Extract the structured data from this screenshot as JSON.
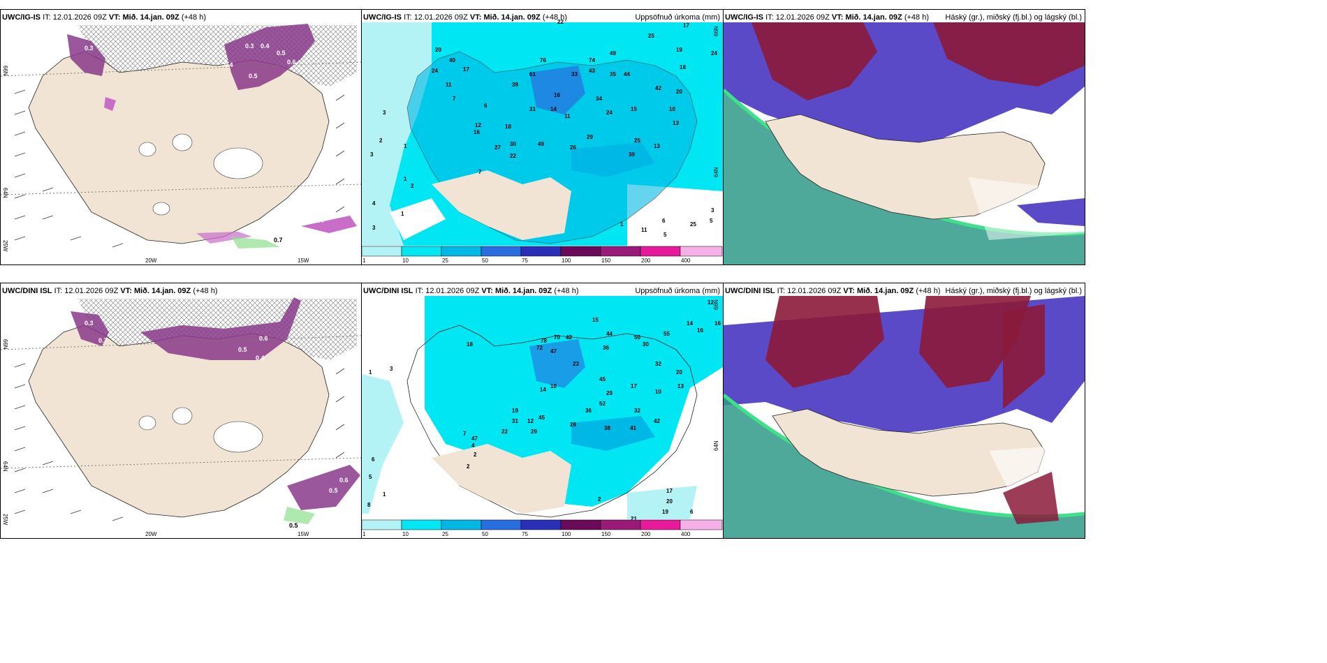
{
  "palette": {
    "land": "#f2e4d4",
    "sea": "#ffffff",
    "coast": "#222222",
    "snow": "#8a3a8a",
    "snow_light": "#c86ec8",
    "rain_green": "#8fe08f",
    "precip": [
      "#b3f3f5",
      "#00e6f2",
      "#00b8e6",
      "#2a6de0",
      "#2a2fb8",
      "#6a0a5a",
      "#9a1a7a",
      "#e61a9a",
      "#f5b0e8"
    ],
    "cloud_high": "#8b1a3a",
    "cloud_mid": "#5a4ac8",
    "cloud_low": "#2f9a8a",
    "cloud_green_edge": "#3ee08a"
  },
  "rows": [
    {
      "model": "UWC/IG-IS",
      "it_label": "IT:",
      "it_value": "12.01.2026 09Z",
      "vt_label": "VT:",
      "vt_value": "Mið. 14.jan. 09Z",
      "lead": "(+48 h)",
      "panels": [
        {
          "title": "",
          "values": [
            "0.7",
            "0.3",
            "0.4",
            "0.5",
            "0.6",
            "0.5",
            "0.4",
            "0.3",
            "0.4"
          ]
        },
        {
          "title": "Uppsöfnuð úrkoma (mm)",
          "values": [
            "17",
            "19",
            "24",
            "18",
            "22",
            "25",
            "74",
            "49",
            "33",
            "76",
            "43",
            "61",
            "44",
            "35",
            "39",
            "34",
            "24",
            "15",
            "42",
            "20",
            "10",
            "13",
            "31",
            "16",
            "14",
            "11",
            "18",
            "49",
            "29",
            "27",
            "30",
            "22",
            "26",
            "39",
            "25",
            "13",
            "7",
            "11",
            "7",
            "3",
            "2",
            "1",
            "4",
            "3",
            "2",
            "1",
            "3",
            "1",
            "11",
            "6",
            "5",
            "25",
            "3",
            "5",
            "1",
            "40",
            "20",
            "17",
            "12",
            "16",
            "6",
            "24"
          ]
        },
        {
          "title": "Háský (gr.), miðský (fj.bl.) og lágský (bl.)"
        }
      ],
      "axis": {
        "left": [
          "66N",
          "64N",
          "25W"
        ],
        "bottom": [
          "20W",
          "15W"
        ],
        "right_center": [
          "66N",
          "64N"
        ]
      }
    },
    {
      "model": "UWC/DINI ISL",
      "it_label": "IT:",
      "it_value": "12.01.2026 09Z",
      "vt_label": "VT:",
      "vt_value": "Mið. 14.jan. 09Z",
      "lead": "(+48 h)",
      "panels": [
        {
          "title": "",
          "values": [
            "0.5",
            "0.6",
            "0.5",
            "0.7",
            "0.4",
            "0.5",
            "0.6",
            "0.3"
          ]
        },
        {
          "title": "Uppsöfnuð úrkoma (mm)",
          "values": [
            "12",
            "16",
            "18",
            "14",
            "15",
            "16",
            "78",
            "70",
            "42",
            "44",
            "72",
            "30",
            "55",
            "50",
            "36",
            "32",
            "47",
            "23",
            "20",
            "13",
            "17",
            "10",
            "10",
            "14",
            "45",
            "29",
            "52",
            "19",
            "31",
            "12",
            "45",
            "22",
            "29",
            "28",
            "36",
            "32",
            "41",
            "42",
            "38",
            "47",
            "6",
            "5",
            "1",
            "8",
            "2",
            "2",
            "4",
            "21",
            "19",
            "20",
            "17",
            "6",
            "2",
            "7",
            "3",
            "1"
          ]
        },
        {
          "title": "Háský (gr.), miðský (fj.bl.) og lágský (bl.)"
        }
      ],
      "axis": {
        "left": [
          "66N",
          "64N",
          "25W"
        ],
        "bottom": [
          "20W",
          "15W"
        ],
        "right_center": [
          "66N",
          "64N"
        ]
      }
    }
  ],
  "colorbar": {
    "ticks": [
      "1",
      "10",
      "25",
      "50",
      "75",
      "100",
      "150",
      "200",
      "400"
    ]
  }
}
